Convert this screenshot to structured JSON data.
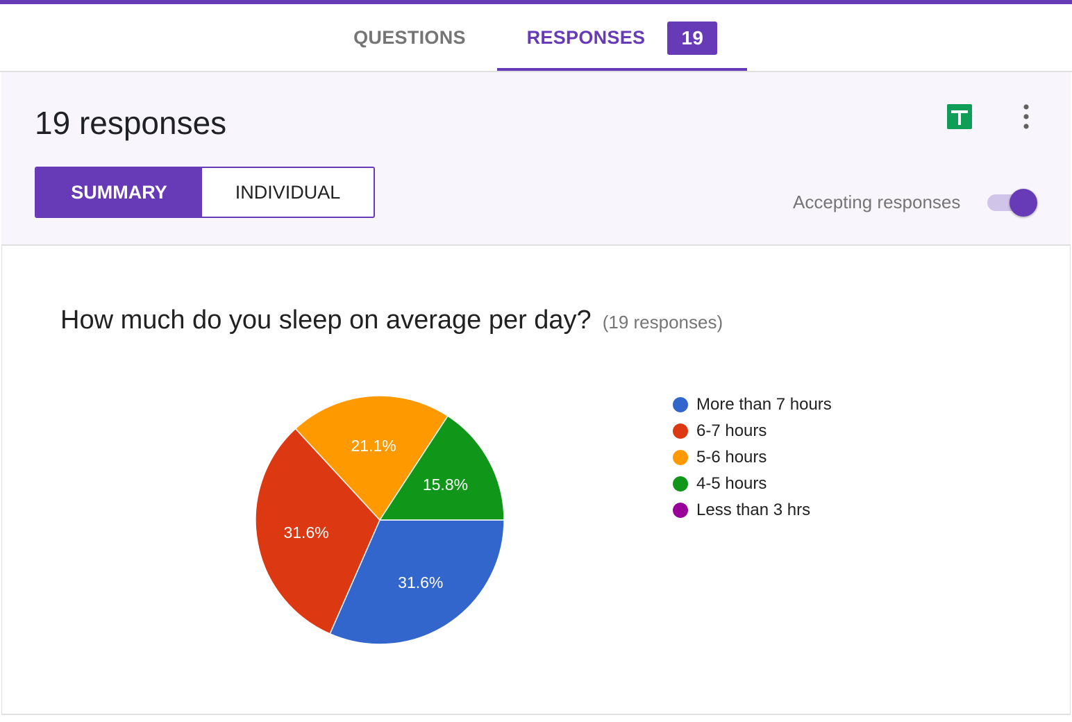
{
  "tabs": {
    "questions_label": "QUESTIONS",
    "responses_label": "RESPONSES",
    "responses_badge": "19"
  },
  "summary_panel": {
    "count_title": "19 responses",
    "summary_label": "SUMMARY",
    "individual_label": "INDIVIDUAL",
    "accepting_label": "Accepting responses",
    "accepting_on": true,
    "icons": [
      "sheets-icon",
      "more-vert-icon"
    ]
  },
  "question": {
    "title": "How much do you sleep on average per day?",
    "count": "(19 responses)"
  },
  "colors": {
    "accent": "#673ab7",
    "sheets_green": "#0f9d58"
  },
  "chart_data": {
    "type": "pie",
    "categories": [
      "More than 7 hours",
      "6-7 hours",
      "5-6 hours",
      "4-5 hours",
      "Less than 3 hrs"
    ],
    "values": [
      31.6,
      31.6,
      21.1,
      15.8,
      0
    ],
    "labels": [
      "31.6%",
      "31.6%",
      "21.1%",
      "15.8%",
      ""
    ],
    "colors": [
      "#3366cc",
      "#dc3912",
      "#ff9900",
      "#109618",
      "#990099"
    ],
    "legend_position": "right"
  }
}
